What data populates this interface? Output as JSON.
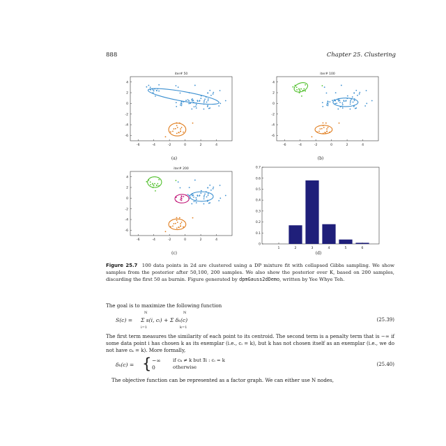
{
  "header": {
    "page_number": "888",
    "chapter": "Chapter 25.  Clustering"
  },
  "figure": {
    "panels": [
      {
        "id": "a",
        "title": "iter# 50",
        "label": "(a)"
      },
      {
        "id": "b",
        "title": "iter# 100",
        "label": "(b)"
      },
      {
        "id": "c",
        "title": "iter# 200",
        "label": "(c)"
      },
      {
        "id": "d",
        "title": "",
        "label": "(d)"
      }
    ],
    "caption_label": "Figure 25.7",
    "caption_text_1": "100 data points in 2d are clustered using a DP mixture fit with collapsed Gibbs sampling. We show samples from the posterior after 50,100, 200 samples. We also show the posterior over K, based on 200 samples, discarding the first 50 as burnin. Figure generated by ",
    "caption_code": "dpmGauss2dDemo",
    "caption_text_2": ", written by Yee Whye Teh."
  },
  "chart_data": [
    {
      "type": "scatter",
      "title": "iter# 50",
      "xlim": [
        -7,
        6
      ],
      "ylim": [
        -7,
        5
      ],
      "xticks": [
        "-6",
        "-4",
        "-2",
        "0",
        "2",
        "4"
      ],
      "yticks": [
        "4",
        "2",
        "0",
        "-2",
        "-4",
        "-6"
      ],
      "clusters": 2
    },
    {
      "type": "scatter",
      "title": "iter# 100",
      "xlim": [
        -7,
        6
      ],
      "ylim": [
        -7,
        5
      ],
      "xticks": [
        "-6",
        "-4",
        "-2",
        "0",
        "2",
        "4"
      ],
      "yticks": [
        "4",
        "2",
        "0",
        "-2",
        "-4",
        "-6"
      ],
      "clusters": 3
    },
    {
      "type": "scatter",
      "title": "iter# 200",
      "xlim": [
        -7,
        6
      ],
      "ylim": [
        -7,
        5
      ],
      "xticks": [
        "-6",
        "-4",
        "-2",
        "0",
        "2",
        "4"
      ],
      "yticks": [
        "4",
        "2",
        "0",
        "-2",
        "-4",
        "-6"
      ],
      "clusters": 4
    },
    {
      "type": "bar",
      "title": "",
      "categories": [
        "1",
        "2",
        "3",
        "4",
        "5",
        "6"
      ],
      "values": [
        0,
        0.17,
        0.58,
        0.18,
        0.04,
        0.01
      ],
      "ylim": [
        0,
        0.7
      ],
      "yticks": [
        "0",
        "0.1",
        "0.2",
        "0.3",
        "0.4",
        "0.5",
        "0.6",
        "0.7"
      ],
      "bar_color": "#1f1f7a"
    }
  ],
  "colors": {
    "blue": "#3b8fd0",
    "orange": "#e07b1a",
    "green": "#4fbf2a",
    "magenta": "#c21a7a",
    "navy": "#1f1f7a"
  },
  "body": {
    "para1": "The goal is to maximize the following function",
    "eq1_lhs": "S(c) = ",
    "eq1_rhs": "Σ s(i, cᵢ) + Σ δₖ(c)",
    "eq1_sum1_top": "N",
    "eq1_sum1_bot": "i=1",
    "eq1_sum2_top": "N",
    "eq1_sum2_bot": "k=1",
    "eq1_num": "(25.39)",
    "para2": "The first term measures the similarity of each point to its centroid. The second term is a penalty term that is −∞ if some data point i has chosen k as its exemplar (i.e., cᵢ = k), but k has not chosen itself as an exemplar (i.e., we do not have cₖ = k). More formally,",
    "eq2_lhs": "δₖ(c) =",
    "eq2_case1_val": "−∞",
    "eq2_case1_cond": "if cₖ ≠ k but ∃i : cᵢ = k",
    "eq2_case2_val": "0",
    "eq2_case2_cond": "otherwise",
    "eq2_num": "(25.40)",
    "para3": "The objective function can be represented as a factor graph. We can either use N nodes,"
  }
}
